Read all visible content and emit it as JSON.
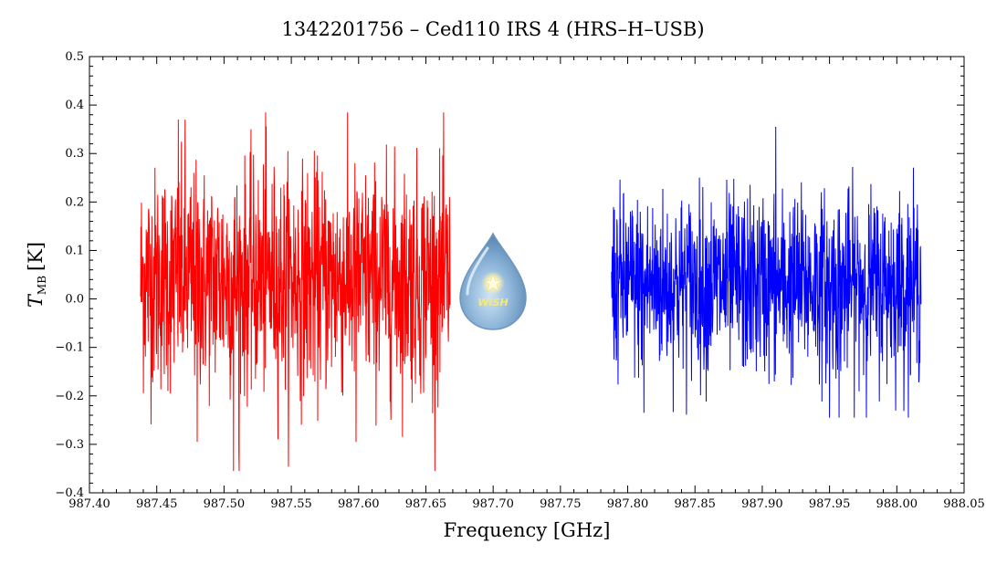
{
  "chart_data": {
    "type": "line",
    "title": "1342201756 – Ced110 IRS 4 (HRS–H–USB)",
    "xlabel": "Frequency [GHz]",
    "ylabel_main": "T",
    "ylabel_sub": "MB",
    "ylabel_unit": "[K]",
    "xlim": [
      987.4,
      988.05
    ],
    "ylim": [
      -0.4,
      0.5
    ],
    "xticks": [
      "987.40",
      "987.45",
      "987.50",
      "987.55",
      "987.60",
      "987.65",
      "987.70",
      "987.75",
      "987.80",
      "987.85",
      "987.90",
      "987.95",
      "988.00",
      "988.05"
    ],
    "yticks": [
      "0.5",
      "0.4",
      "0.3",
      "0.2",
      "0.1",
      "0.0",
      "−0.1",
      "−0.2",
      "−0.3",
      "−0.4"
    ],
    "grid": false,
    "series": [
      {
        "color": "#ff0000",
        "x_range": [
          987.438,
          987.668
        ],
        "mean": 0.04,
        "max": 0.385,
        "min": -0.355,
        "peaks": [
          {
            "x": 987.531,
            "y": 0.385
          },
          {
            "x": 987.466,
            "y": 0.37
          },
          {
            "x": 987.471,
            "y": 0.37
          },
          {
            "x": 987.507,
            "y": -0.355
          },
          {
            "x": 987.511,
            "y": -0.315
          },
          {
            "x": 987.48,
            "y": -0.295
          },
          {
            "x": 987.598,
            "y": -0.295
          }
        ]
      },
      {
        "color": "#0000ff",
        "x_range": [
          987.788,
          988.018
        ],
        "mean": 0.03,
        "max": 0.355,
        "min": -0.245,
        "peaks": [
          {
            "x": 987.91,
            "y": 0.355
          },
          {
            "x": 987.812,
            "y": -0.235
          },
          {
            "x": 987.95,
            "y": -0.245
          },
          {
            "x": 987.957,
            "y": -0.245
          }
        ]
      }
    ],
    "logo": {
      "text": "WISH"
    }
  }
}
